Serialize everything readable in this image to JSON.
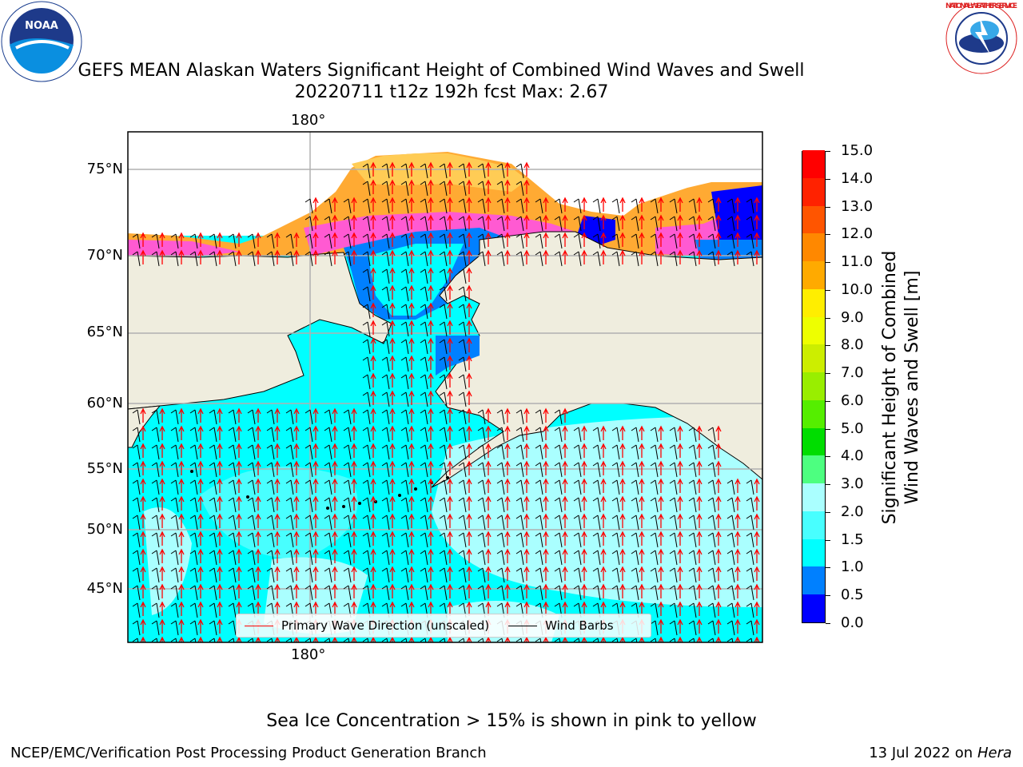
{
  "title": {
    "line1": "GEFS MEAN Alaskan Waters Significant Height of Combined Wind Waves and Swell",
    "line2": "20220711 t12z 192h fcst   Max: 2.67"
  },
  "logos": {
    "noaa_text": "NOAA",
    "nws_text": "NATIONAL WEATHER SERVICE"
  },
  "map": {
    "lon_labels": [
      "180°",
      "180°"
    ],
    "lat_labels": [
      "75°N",
      "70°N",
      "65°N",
      "60°N",
      "55°N",
      "50°N",
      "45°N"
    ],
    "colors": {
      "land": "#efedde",
      "ocean_dark": "#00ffff",
      "ocean_light": "#aaffff",
      "shallow": "#0088ff",
      "ice_pink": "#ff5ad2",
      "ice_orange": "#ffaa33",
      "ice_yellow": "#ffcc55"
    }
  },
  "legend": {
    "wave_direction": "Primary Wave Direction (unscaled)",
    "wind_barbs": "Wind Barbs",
    "wave_color": "#ff0000",
    "barb_color": "#000000"
  },
  "colorbar": {
    "title_line1": "Significant Height of Combined",
    "title_line2": "Wind Waves and Swell [m]",
    "ticks": [
      "15.0",
      "14.0",
      "13.0",
      "12.0",
      "11.0",
      "10.0",
      "9.0",
      "8.0",
      "7.0",
      "6.0",
      "5.0",
      "4.0",
      "3.0",
      "2.0",
      "1.5",
      "1.0",
      "0.5",
      "0.0"
    ],
    "colors_bottom_to_top": [
      "#0000ff",
      "#0080ff",
      "#00ffff",
      "#48ffff",
      "#aaffff",
      "#4dff80",
      "#00dd00",
      "#55ee00",
      "#99ee00",
      "#ccee00",
      "#eeff00",
      "#ffee00",
      "#ffaa00",
      "#ff8800",
      "#ff5500",
      "#ff2200",
      "#ff0000"
    ]
  },
  "note": "Sea Ice Concentration > 15% is shown in pink to yellow",
  "footer": {
    "left": "NCEP/EMC/Verification Post Processing Product Generation Branch",
    "right_date": "13 Jul 2022 on ",
    "right_host": "Hera"
  }
}
